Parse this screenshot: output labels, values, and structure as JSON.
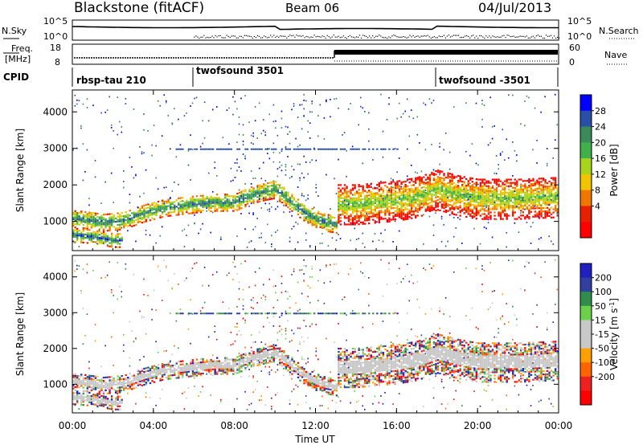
{
  "header": {
    "station": "Blackstone (fitACF)",
    "beam": "Beam 06",
    "date": "04/Jul/2013"
  },
  "noise_panel": {
    "left_label": "N.Sky",
    "right_label": "N.Search",
    "left_ticks": [
      "10^5",
      "10^0"
    ],
    "right_ticks": [
      "10^5",
      "10^0"
    ]
  },
  "freq_panel": {
    "left_label_line1": "Freq.",
    "left_label_line2": "[MHz]",
    "right_label": "Nave",
    "left_ticks": [
      "18",
      "8"
    ],
    "right_ticks": [
      "60",
      "0"
    ]
  },
  "cpid_panel": {
    "label": "CPID",
    "segments": [
      {
        "text": "rbsp-tau 210",
        "start_hour": 0
      },
      {
        "text": "twofsound 3501",
        "start_hour": 6
      },
      {
        "text": "twofsound -3501",
        "start_hour": 18
      }
    ]
  },
  "x_axis": {
    "title": "Time UT",
    "ticks": [
      "00:00",
      "04:00",
      "08:00",
      "12:00",
      "16:00",
      "20:00",
      "00:00"
    ]
  },
  "colors": {
    "power_scale": [
      "#0000ff",
      "#2a4fa8",
      "#3a8a5a",
      "#3fb04a",
      "#a8d41c",
      "#f0c400",
      "#f07800",
      "#e82000",
      "#ff0000"
    ],
    "velocity_scale": [
      "#2020c0",
      "#303fa0",
      "#2e8e4a",
      "#6bd04a",
      "#c8c8c8",
      "#c8c8c8",
      "#ffa000",
      "#ff6400",
      "#f02020",
      "#ff0000"
    ]
  },
  "chart_data": [
    {
      "type": "heatmap",
      "name": "power",
      "ylabel": "Slant Range [km]",
      "y_ticks": [
        1000,
        2000,
        3000,
        4000
      ],
      "ylim": [
        200,
        4600
      ],
      "xlim_hours": [
        0,
        24
      ],
      "colorbar": {
        "label": "Power [dB]",
        "ticks": [
          "28",
          "24",
          "20",
          "16",
          "12",
          "8",
          "4"
        ]
      },
      "echo_bands": [
        {
          "hours": [
            0,
            0.5,
            1.5,
            2.5,
            3.5,
            4.5,
            6,
            7,
            8,
            8.8,
            9.5,
            10,
            10.5,
            11,
            11.5,
            12,
            12.5,
            13
          ],
          "range_km": [
            1100,
            1080,
            1000,
            1050,
            1250,
            1400,
            1500,
            1550,
            1550,
            1750,
            1850,
            1900,
            1700,
            1450,
            1250,
            1100,
            1000,
            950
          ],
          "level": 26
        },
        {
          "hours": [
            13,
            14,
            15,
            16,
            17,
            18,
            19,
            20,
            22,
            24
          ],
          "range_km": [
            1500,
            1500,
            1550,
            1600,
            1700,
            1900,
            1750,
            1650,
            1650,
            1700
          ],
          "level": 20
        },
        {
          "hours": [
            0,
            1,
            2,
            2.5
          ],
          "range_km": [
            650,
            600,
            500,
            500
          ],
          "level": 28
        }
      ]
    },
    {
      "type": "heatmap",
      "name": "velocity",
      "ylabel": "Slant Range [km]",
      "y_ticks": [
        1000,
        2000,
        3000,
        4000
      ],
      "ylim": [
        200,
        4600
      ],
      "xlim_hours": [
        0,
        24
      ],
      "colorbar": {
        "label": "Velocity [m s^-1]",
        "ticks": [
          "200",
          "100",
          "50",
          "15",
          "-15",
          "-50",
          "-100",
          "-200"
        ]
      }
    }
  ]
}
